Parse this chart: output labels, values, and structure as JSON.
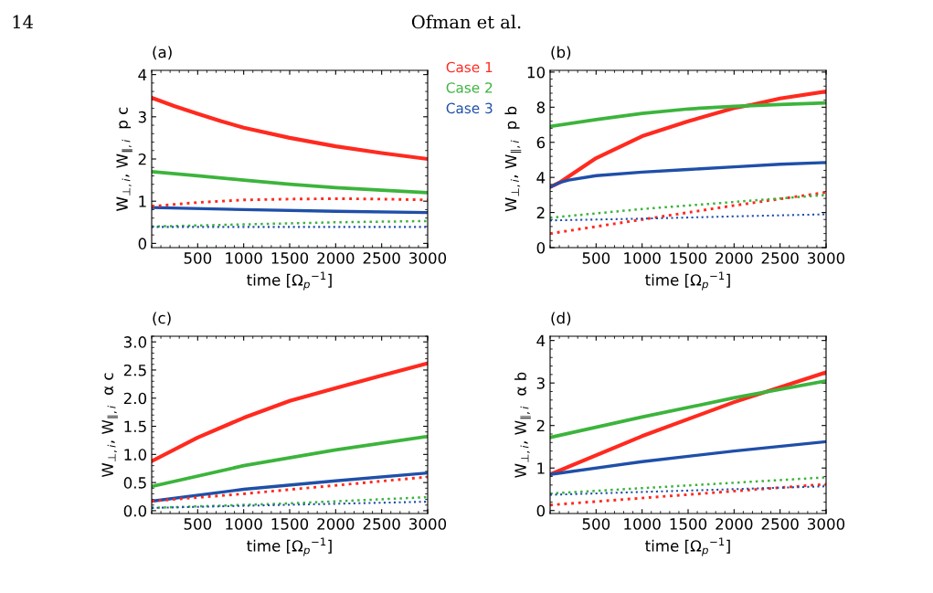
{
  "chart_data": [
    {
      "type": "line",
      "title": "(a)",
      "xlabel": "time [Ω$_{p}$$^{−1}$]",
      "ylabel": "W$_{⊥,i}$, W$_{∥,i}$  p c",
      "annotations": [
        "14",
        "Ofman et al."
      ],
      "legend": "top right",
      "grid": false,
      "xlim": [
        0,
        3000
      ],
      "xticks": [
        500,
        1000,
        1500,
        2000,
        2500,
        3000
      ],
      "ylim": [
        -0.1,
        4.1
      ],
      "yticks": [
        0,
        1,
        2,
        3,
        4
      ],
      "series": [
        {
          "name": "Case 1",
          "color": "#ff2a1f",
          "line_style": "solid",
          "x": [
            0,
            250,
            500,
            750,
            1000,
            1500,
            2000,
            2500,
            3000
          ],
          "values": [
            3.45,
            3.25,
            3.07,
            2.9,
            2.74,
            2.5,
            2.3,
            2.14,
            2.0
          ]
        },
        {
          "name": "Case 2",
          "color": "#3cb43c",
          "line_style": "solid",
          "x": [
            0,
            500,
            1000,
            1500,
            2000,
            2500,
            3000
          ],
          "values": [
            1.7,
            1.6,
            1.5,
            1.4,
            1.32,
            1.26,
            1.2
          ]
        },
        {
          "name": "Case 3",
          "color": "#1f4fa8",
          "line_style": "solid",
          "x": [
            0,
            1000,
            2000,
            3000
          ],
          "values": [
            0.85,
            0.8,
            0.76,
            0.73
          ]
        },
        {
          "color": "#ff2a1f",
          "line_style": "dotted",
          "x": [
            0,
            500,
            1000,
            1500,
            2000,
            2500,
            3000
          ],
          "values": [
            0.88,
            0.97,
            1.03,
            1.05,
            1.06,
            1.05,
            1.03
          ]
        },
        {
          "color": "#3cb43c",
          "line_style": "dotted",
          "x": [
            0,
            1000,
            2000,
            3000
          ],
          "values": [
            0.4,
            0.45,
            0.5,
            0.53
          ]
        },
        {
          "color": "#1f4fa8",
          "line_style": "dotted",
          "x": [
            0,
            3000
          ],
          "values": [
            0.39,
            0.39
          ]
        }
      ]
    },
    {
      "type": "line",
      "title": "(b)",
      "xlabel": "time [Ω$_{p}$$^{−1}$]",
      "ylabel": "W$_{⊥,i}$, W$_{∥,i}$  p b",
      "grid": false,
      "xlim": [
        0,
        3000
      ],
      "xticks": [
        500,
        1000,
        1500,
        2000,
        2500,
        3000
      ],
      "ylim": [
        0,
        10.1
      ],
      "yticks": [
        0,
        2,
        4,
        6,
        8,
        10
      ],
      "series": [
        {
          "color": "#ff2a1f",
          "line_style": "solid",
          "x": [
            0,
            100,
            500,
            1000,
            1500,
            2000,
            2200,
            2500,
            3000
          ],
          "values": [
            3.45,
            3.7,
            5.1,
            6.35,
            7.2,
            7.95,
            8.15,
            8.5,
            8.9
          ]
        },
        {
          "color": "#3cb43c",
          "line_style": "solid",
          "x": [
            0,
            500,
            1000,
            1500,
            2000,
            2500,
            3000
          ],
          "values": [
            6.9,
            7.3,
            7.65,
            7.9,
            8.05,
            8.15,
            8.25
          ]
        },
        {
          "color": "#1f4fa8",
          "line_style": "solid",
          "x": [
            0,
            100,
            200,
            500,
            1000,
            1500,
            2000,
            2500,
            3000
          ],
          "values": [
            3.45,
            3.7,
            3.85,
            4.1,
            4.3,
            4.45,
            4.6,
            4.75,
            4.85
          ]
        },
        {
          "color": "#ff2a1f",
          "line_style": "dotted",
          "x": [
            0,
            1000,
            2000,
            3000
          ],
          "values": [
            0.8,
            1.6,
            2.4,
            3.15
          ]
        },
        {
          "color": "#3cb43c",
          "line_style": "dotted",
          "x": [
            0,
            1000,
            2000,
            3000
          ],
          "values": [
            1.7,
            2.2,
            2.6,
            3.0
          ]
        },
        {
          "color": "#1f4fa8",
          "line_style": "dotted",
          "x": [
            0,
            1000,
            2000,
            3000
          ],
          "values": [
            1.55,
            1.65,
            1.78,
            1.9
          ]
        }
      ]
    },
    {
      "type": "line",
      "title": "(c)",
      "xlabel": "time [Ω$_{p}$$^{−1}$]",
      "ylabel": "W$_{⊥,i}$, W$_{∥,i}$  α c",
      "grid": false,
      "xlim": [
        0,
        3000
      ],
      "xticks": [
        500,
        1000,
        1500,
        2000,
        2500,
        3000
      ],
      "ylim": [
        -0.05,
        3.1
      ],
      "yticks": [
        {
          "value": 0,
          "label": "0.0"
        },
        0.5,
        {
          "value": 1,
          "label": "1.0"
        },
        1.5,
        {
          "value": 2,
          "label": "2.0"
        },
        2.5,
        {
          "value": 3,
          "label": "3.0"
        }
      ],
      "series": [
        {
          "color": "#ff2a1f",
          "line_style": "solid",
          "x": [
            0,
            500,
            1000,
            1500,
            2000,
            2500,
            3000
          ],
          "values": [
            0.88,
            1.3,
            1.65,
            1.95,
            2.18,
            2.4,
            2.62
          ]
        },
        {
          "color": "#3cb43c",
          "line_style": "solid",
          "x": [
            0,
            1000,
            2000,
            3000
          ],
          "values": [
            0.43,
            0.8,
            1.08,
            1.32
          ]
        },
        {
          "color": "#1f4fa8",
          "line_style": "solid",
          "x": [
            0,
            1000,
            2000,
            3000
          ],
          "values": [
            0.17,
            0.38,
            0.53,
            0.67
          ]
        },
        {
          "color": "#ff2a1f",
          "line_style": "dotted",
          "x": [
            0,
            1000,
            2000,
            3000
          ],
          "values": [
            0.17,
            0.3,
            0.45,
            0.6
          ]
        },
        {
          "color": "#3cb43c",
          "line_style": "dotted",
          "x": [
            0,
            1500,
            3000
          ],
          "values": [
            0.05,
            0.13,
            0.24
          ]
        },
        {
          "color": "#1f4fa8",
          "line_style": "dotted",
          "x": [
            0,
            3000
          ],
          "values": [
            0.05,
            0.16
          ]
        }
      ]
    },
    {
      "type": "line",
      "title": "(d)",
      "xlabel": "time [Ω$_{p}$$^{−1}$]",
      "ylabel": "W$_{⊥,i}$, W$_{∥,i}$  α b",
      "grid": false,
      "xlim": [
        0,
        3000
      ],
      "xticks": [
        500,
        1000,
        1500,
        2000,
        2500,
        3000
      ],
      "ylim": [
        -0.07,
        4.1
      ],
      "yticks": [
        0,
        1,
        2,
        3,
        4
      ],
      "series": [
        {
          "color": "#ff2a1f",
          "line_style": "solid",
          "x": [
            0,
            1000,
            2000,
            3000
          ],
          "values": [
            0.85,
            1.75,
            2.55,
            3.25
          ]
        },
        {
          "color": "#3cb43c",
          "line_style": "solid",
          "x": [
            0,
            1000,
            2000,
            3000
          ],
          "values": [
            1.72,
            2.2,
            2.65,
            3.05
          ]
        },
        {
          "color": "#1f4fa8",
          "line_style": "solid",
          "x": [
            0,
            1000,
            2000,
            3000
          ],
          "values": [
            0.85,
            1.15,
            1.4,
            1.62
          ]
        },
        {
          "color": "#ff2a1f",
          "line_style": "dotted",
          "x": [
            0,
            3000
          ],
          "values": [
            0.13,
            0.62
          ]
        },
        {
          "color": "#3cb43c",
          "line_style": "dotted",
          "x": [
            0,
            3000
          ],
          "values": [
            0.4,
            0.78
          ]
        },
        {
          "color": "#1f4fa8",
          "line_style": "dotted",
          "x": [
            0,
            3000
          ],
          "values": [
            0.37,
            0.57
          ]
        }
      ]
    }
  ]
}
